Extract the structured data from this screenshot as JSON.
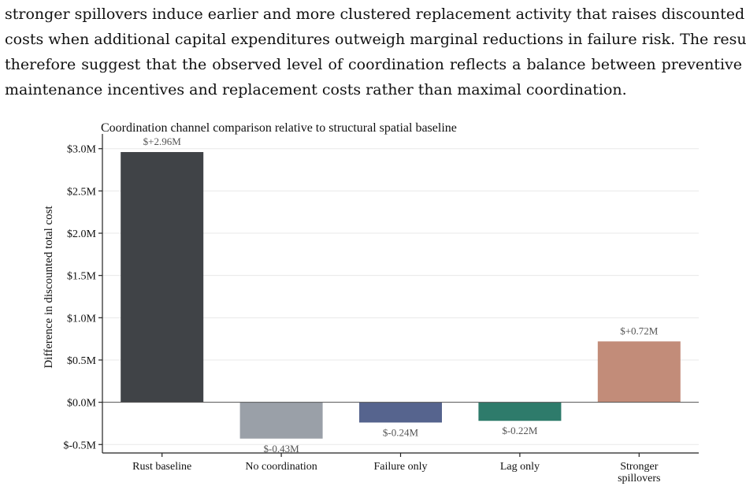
{
  "paragraph": {
    "lines": [
      "stronger spillovers induce earlier and more clustered replacement activity that raises discounted",
      "costs when additional capital expenditures outweigh marginal reductions in failure risk. The results",
      "therefore suggest that the observed level of coordination reflects a balance between preventive",
      "maintenance incentives and replacement costs rather than maximal coordination."
    ]
  },
  "chart_data": {
    "type": "bar",
    "title": "Coordination channel comparison relative to structural spatial baseline",
    "xlabel": "",
    "ylabel": "Difference in discounted total cost",
    "categories": [
      [
        "Rust baseline"
      ],
      [
        "No coordination"
      ],
      [
        "Failure only"
      ],
      [
        "Lag only"
      ],
      [
        "Stronger",
        "spillovers"
      ]
    ],
    "values": [
      2.96,
      -0.43,
      -0.24,
      -0.22,
      0.72
    ],
    "value_labels": [
      "$+2.96M",
      "$-0.43M",
      "$-0.24M",
      "$-0.22M",
      "$+0.72M"
    ],
    "colors": [
      "#404347",
      "#9aa0a8",
      "#56648e",
      "#2e7b6b",
      "#c28c79"
    ],
    "yticks": [
      3.0,
      2.5,
      2.0,
      1.5,
      1.0,
      0.5,
      0.0,
      -0.5
    ],
    "ytick_labels": [
      "$3.0M",
      "$2.5M",
      "$2.0M",
      "$1.5M",
      "$1.0M",
      "$0.5M",
      "$0.0M",
      "$-0.5M"
    ],
    "ylim": [
      -0.6,
      3.1
    ],
    "grid": true,
    "units": "$M"
  }
}
